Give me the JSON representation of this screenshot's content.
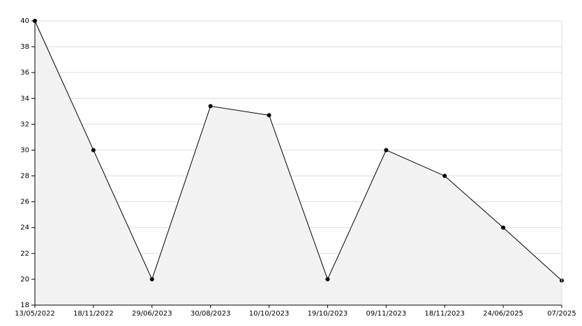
{
  "chart_data": {
    "type": "area",
    "categories": [
      "13/05/2022",
      "18/11/2022",
      "29/06/2023",
      "30/08/2023",
      "10/10/2023",
      "19/10/2023",
      "09/11/2023",
      "18/11/2023",
      "24/06/2025",
      "07/2025"
    ],
    "values": [
      40,
      30,
      20,
      33.4,
      32.7,
      20,
      30,
      28,
      24,
      19.9
    ],
    "color": "#000000",
    "fill": "#f2f2f2",
    "ylim": [
      18,
      40
    ],
    "yticks": [
      18,
      20,
      22,
      24,
      26,
      28,
      30,
      32,
      34,
      36,
      38,
      40
    ],
    "grid": true
  }
}
